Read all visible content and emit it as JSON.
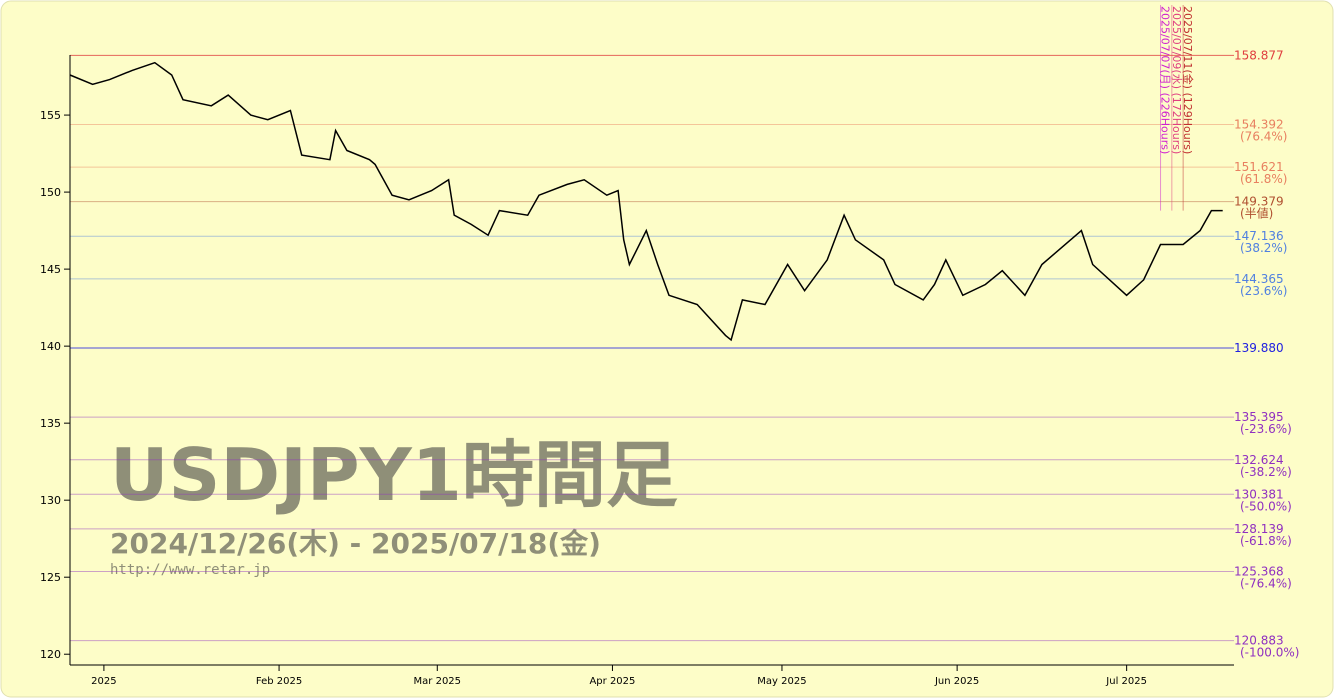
{
  "chart_data": {
    "type": "line",
    "title": "USDJPY1時間足",
    "subtitle": "2024/12/26(木) - 2025/07/18(金)",
    "source": "http://www.retar.jp",
    "color": "#000000",
    "x": [
      "2024-12-26",
      "2024-12-30",
      "2025-01-02",
      "2025-01-06",
      "2025-01-10",
      "2025-01-13",
      "2025-01-15",
      "2025-01-20",
      "2025-01-23",
      "2025-01-27",
      "2025-01-30",
      "2025-02-03",
      "2025-02-05",
      "2025-02-10",
      "2025-02-11",
      "2025-02-13",
      "2025-02-17",
      "2025-02-18",
      "2025-02-21",
      "2025-02-24",
      "2025-02-26",
      "2025-02-28",
      "2025-03-03",
      "2025-03-04",
      "2025-03-07",
      "2025-03-10",
      "2025-03-12",
      "2025-03-17",
      "2025-03-19",
      "2025-03-24",
      "2025-03-27",
      "2025-03-31",
      "2025-04-02",
      "2025-04-03",
      "2025-04-04",
      "2025-04-07",
      "2025-04-09",
      "2025-04-11",
      "2025-04-16",
      "2025-04-21",
      "2025-04-22",
      "2025-04-24",
      "2025-04-28",
      "2025-05-02",
      "2025-05-05",
      "2025-05-09",
      "2025-05-12",
      "2025-05-14",
      "2025-05-19",
      "2025-05-21",
      "2025-05-26",
      "2025-05-28",
      "2025-05-30",
      "2025-06-02",
      "2025-06-06",
      "2025-06-09",
      "2025-06-13",
      "2025-06-16",
      "2025-06-23",
      "2025-06-25",
      "2025-07-01",
      "2025-07-04",
      "2025-07-07",
      "2025-07-11",
      "2025-07-14",
      "2025-07-16",
      "2025-07-18"
    ],
    "values": [
      157.6,
      157.0,
      157.3,
      157.9,
      158.4,
      157.6,
      156.0,
      155.6,
      156.3,
      155.0,
      154.7,
      155.3,
      152.4,
      152.1,
      154.0,
      152.7,
      152.1,
      151.8,
      149.8,
      149.5,
      149.8,
      150.1,
      150.8,
      148.5,
      147.9,
      147.2,
      148.8,
      148.5,
      149.8,
      150.5,
      150.8,
      149.8,
      150.1,
      146.9,
      145.3,
      147.5,
      145.3,
      143.3,
      142.7,
      140.7,
      140.4,
      143.0,
      142.7,
      145.3,
      143.6,
      145.6,
      148.5,
      146.9,
      145.6,
      144.0,
      143.0,
      144.0,
      145.6,
      143.3,
      144.0,
      144.9,
      143.3,
      145.3,
      147.5,
      145.3,
      143.3,
      144.3,
      146.6,
      146.6,
      147.5,
      148.8,
      148.8
    ],
    "xlim": [
      "2024-12-26",
      "2025-07-20"
    ],
    "xticks": [
      {
        "value": "2025-01-01",
        "label": "2025"
      },
      {
        "value": "2025-02-01",
        "label": "Feb 2025"
      },
      {
        "value": "2025-03-01",
        "label": "Mar 2025"
      },
      {
        "value": "2025-04-01",
        "label": "Apr 2025"
      },
      {
        "value": "2025-05-01",
        "label": "May 2025"
      },
      {
        "value": "2025-06-01",
        "label": "Jun 2025"
      },
      {
        "value": "2025-07-01",
        "label": "Jul 2025"
      }
    ],
    "ylim": [
      119.3,
      158.9
    ],
    "yticks": [
      120,
      125,
      130,
      135,
      140,
      145,
      150,
      155
    ],
    "levels": [
      {
        "value": 158.877,
        "label": "158.877",
        "color": "#e04040"
      },
      {
        "value": 154.392,
        "label": "154.392",
        "note": "(76.4%)",
        "color": "#e88060"
      },
      {
        "value": 151.621,
        "label": "151.621",
        "note": "(61.8%)",
        "color": "#e88060"
      },
      {
        "value": 149.379,
        "label": "149.379",
        "note": "(半値)",
        "color": "#b05030"
      },
      {
        "value": 147.136,
        "label": "147.136",
        "note": "(38.2%)",
        "color": "#5080e0"
      },
      {
        "value": 144.365,
        "label": "144.365",
        "note": "(23.6%)",
        "color": "#5080e0"
      },
      {
        "value": 139.88,
        "label": "139.880",
        "color": "#2020e0"
      },
      {
        "value": 135.395,
        "label": "135.395",
        "note": "(-23.6%)",
        "color": "#9030c0"
      },
      {
        "value": 132.624,
        "label": "132.624",
        "note": "(-38.2%)",
        "color": "#9030c0"
      },
      {
        "value": 130.381,
        "label": "130.381",
        "note": "(-50.0%)",
        "color": "#9030c0"
      },
      {
        "value": 128.139,
        "label": "128.139",
        "note": "(-61.8%)",
        "color": "#9030c0"
      },
      {
        "value": 125.368,
        "label": "125.368",
        "note": "(-76.4%)",
        "color": "#9030c0"
      },
      {
        "value": 120.883,
        "label": "120.883",
        "note": "(-100.0%)",
        "color": "#9030c0"
      }
    ],
    "markers": [
      {
        "x": "2025-07-07",
        "label": "2025/07/07(月) (226Hours)",
        "color": "#d020d0"
      },
      {
        "x": "2025-07-09",
        "label": "2025/07/09(水) (172Hours)",
        "color": "#e04080"
      },
      {
        "x": "2025-07-11",
        "label": "2025/07/11(金) (129Hours)",
        "color": "#c03030"
      }
    ]
  }
}
